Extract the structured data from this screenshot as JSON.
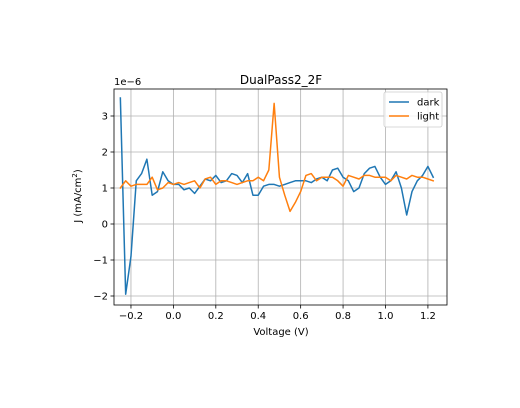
{
  "chart_data": {
    "type": "line",
    "title": "DualPass2_2F",
    "xlabel": "Voltage (V)",
    "ylabel_main": "J (mA/cm",
    "ylabel_sup": "2",
    "ylabel_close": ")",
    "offset_label": "1e−6",
    "xlim": [
      -0.28,
      1.29
    ],
    "ylim": [
      -2.25,
      3.75
    ],
    "xticks": [
      -0.2,
      0.0,
      0.2,
      0.4,
      0.6,
      0.8,
      1.0,
      1.2
    ],
    "xtick_labels": [
      "−0.2",
      "0.0",
      "0.2",
      "0.4",
      "0.6",
      "0.8",
      "1.0",
      "1.2"
    ],
    "yticks": [
      -2,
      -1,
      0,
      1,
      2,
      3
    ],
    "ytick_labels": [
      "−2",
      "−1",
      "0",
      "1",
      "2",
      "3"
    ],
    "grid": true,
    "legend_position": "upper right",
    "x": [
      -0.25,
      -0.225,
      -0.2,
      -0.175,
      -0.15,
      -0.125,
      -0.1,
      -0.075,
      -0.05,
      -0.025,
      0.0,
      0.025,
      0.05,
      0.075,
      0.1,
      0.125,
      0.15,
      0.175,
      0.2,
      0.225,
      0.25,
      0.275,
      0.3,
      0.325,
      0.35,
      0.375,
      0.4,
      0.425,
      0.45,
      0.475,
      0.5,
      0.525,
      0.55,
      0.575,
      0.6,
      0.625,
      0.65,
      0.675,
      0.7,
      0.725,
      0.75,
      0.775,
      0.8,
      0.825,
      0.85,
      0.875,
      0.9,
      0.925,
      0.95,
      0.975,
      1.0,
      1.025,
      1.05,
      1.075,
      1.1,
      1.125,
      1.15,
      1.175,
      1.2,
      1.225
    ],
    "series": [
      {
        "name": "dark",
        "color": "#1f77b4",
        "values": [
          3.5,
          -1.95,
          -0.9,
          1.2,
          1.4,
          1.8,
          0.8,
          0.9,
          1.45,
          1.2,
          1.1,
          1.1,
          0.95,
          1.0,
          0.85,
          1.05,
          1.25,
          1.2,
          1.35,
          1.15,
          1.2,
          1.4,
          1.35,
          1.15,
          1.4,
          0.8,
          0.8,
          1.05,
          1.1,
          1.1,
          1.05,
          1.1,
          1.15,
          1.2,
          1.2,
          1.2,
          1.15,
          1.25,
          1.3,
          1.2,
          1.5,
          1.55,
          1.3,
          1.2,
          0.9,
          1.0,
          1.4,
          1.55,
          1.6,
          1.3,
          1.1,
          1.2,
          1.45,
          1.0,
          0.25,
          0.9,
          1.2,
          1.35,
          1.6,
          1.3
        ]
      },
      {
        "name": "light",
        "color": "#ff7f0e",
        "values": [
          1.0,
          1.2,
          1.05,
          1.1,
          1.1,
          1.1,
          1.3,
          0.95,
          1.0,
          1.15,
          1.1,
          1.15,
          1.1,
          1.15,
          1.2,
          1.0,
          1.25,
          1.3,
          1.1,
          1.2,
          1.2,
          1.15,
          1.1,
          1.15,
          1.2,
          1.2,
          1.3,
          1.2,
          1.5,
          3.35,
          1.3,
          0.8,
          0.35,
          0.6,
          0.9,
          1.35,
          1.4,
          1.2,
          1.3,
          1.3,
          1.3,
          1.2,
          1.05,
          1.35,
          1.3,
          1.25,
          1.35,
          1.35,
          1.3,
          1.3,
          1.3,
          1.2,
          1.35,
          1.3,
          1.25,
          1.35,
          1.3,
          1.3,
          1.25,
          1.2
        ]
      }
    ]
  }
}
